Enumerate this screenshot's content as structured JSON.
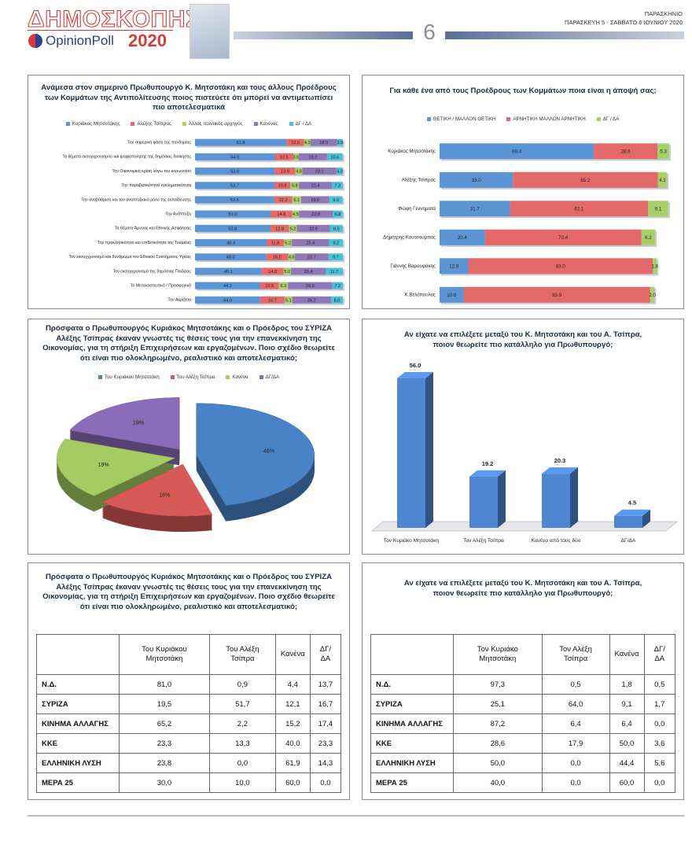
{
  "header": {
    "title": "ΔΗΜΟΣΚΟΠΗΣΗ",
    "brand": "OpinionPoll",
    "year": "2020",
    "page": "6",
    "section": "ΠΑΡΑΣΚΗΝΙΟ",
    "date": "ΠΑΡΑΣΚΕΥΗ 5 - ΣΑΒΒΑΤΟ 6 ΙΟΥΝΙΟΥ 2020"
  },
  "chart_data": [
    {
      "type": "barh",
      "stacked": true,
      "legend": "top",
      "title": "Ανάμεσα στον σημερινό Πρωθυπουργό Κ. Μητσοτάκη και τους άλλους Προέδρους των Κομμάτων της Αντιπολίτευσης ποιος πιστεύετε ότι μπορεί να αντιμετωπίσει πιο αποτελεσματικά",
      "categories": [
        "Την σημερινή φάση της πανδημίας",
        "Τα θέματα εκσυγχρονισμού και ψηφιοποίησης της δημόσιας διοίκησης",
        "Την Οικονομική κρίση λόγω του κορωνοϊού",
        "Την παραβατικότητα/ εγκληματικότητα",
        "Την αναβάθμιση και τον αναπτυξιακό ρόλο της εκπαίδευσης",
        "Την Ανάπτυξη",
        "Τα θέματα Άμυνας και Εθνικής Ασφάλειας",
        "Την προκλητικότητα και επιθετικότητα της Τουρκίας",
        "Τον εκσυγχρονισμό και δυνάμωμα του Εθνικού Συστήματος Υγείας",
        "Τον εκσυγχρονισμό της δημόσιας Παιδείας",
        "Το Μεταναστευτικό / Προσφυγικό",
        "Την Ακρίβεια"
      ],
      "series": [
        {
          "name": "Κυριάκος Μητσοτάκης",
          "color": "#5b95d6",
          "values": [
            61.8,
            54.0,
            53.9,
            53.7,
            53.5,
            51.0,
            50.8,
            48.4,
            48.0,
            45.1,
            44.1,
            44.0
          ],
          "value_labels": [
            "61.8",
            "54.0",
            "53.9",
            "53.7",
            "53.5",
            "51.0",
            "50.8",
            "48.4",
            "48.0",
            "45.1",
            "44.1",
            "44.0"
          ]
        },
        {
          "name": "Αλέξης Τσίπρας",
          "color": "#e46a6a",
          "values": [
            12.0,
            12.5,
            13.9,
            10.8,
            12.2,
            14.8,
            12.8,
            11.8,
            15.0,
            14.8,
            12.6,
            16.7
          ],
          "value_labels": [
            "12.0",
            "12.5",
            "13.9",
            "10.8",
            "12.2",
            "14.8",
            "12.8",
            "11.8",
            "15.0",
            "14.8",
            "12.6",
            "16.7"
          ]
        },
        {
          "name": "Άλλος πολιτικός αρχηγός",
          "color": "#a8cf6a",
          "values": [
            4.3,
            3.6,
            4.8,
            5.8,
            6.1,
            4.5,
            5.2,
            5.2,
            4.6,
            5.0,
            6.2,
            5.1
          ],
          "value_labels": [
            "4.3",
            "3.6",
            "4.8",
            "5.8",
            "6.1",
            "4.5",
            "5.2",
            "5.2",
            "4.6",
            "5.0",
            "6.2",
            "5.1"
          ]
        },
        {
          "name": "Κανένας",
          "color": "#9077b8",
          "values": [
            18.0,
            19.2,
            23.1,
            22.4,
            19.0,
            22.8,
            22.6,
            25.4,
            22.7,
            23.4,
            29.9,
            26.2
          ],
          "value_labels": [
            "18.0",
            "19.2",
            "23.1",
            "22.4",
            "19.0",
            "22.8",
            "22.6",
            "25.4",
            "22.7",
            "23.4",
            "29.9",
            "26.2"
          ]
        },
        {
          "name": "ΔΓ / ΔΑ",
          "color": "#4cc0d6",
          "values": [
            3.9,
            10.6,
            4.3,
            7.3,
            9.0,
            6.8,
            8.5,
            9.2,
            9.7,
            11.7,
            7.2,
            8.0
          ],
          "value_labels": [
            "3.9",
            "10.6",
            "4.3",
            "7.3",
            "9.0",
            "6.8",
            "8.5",
            "9.2",
            "9.7",
            "11.7",
            "7.2",
            "8.0"
          ]
        }
      ]
    },
    {
      "type": "barh",
      "stacked": true,
      "legend": "top",
      "title": "Για κάθε ένα από τους Προέδρους των Κομμάτων ποια είναι η άποψή σας;",
      "categories": [
        "Κυριάκος Μητσοτάκης",
        "Αλέξης Τσίπρας",
        "Φώφη Γεννηματά",
        "Δημήτρης Κουτσούμπας",
        "Γιάννης Βαρουφάκης",
        "Κ.Βελόπουλος"
      ],
      "series": [
        {
          "name": "ΘΕΤΙΚΗ / ΜΑΛΛΟΝ ΘΕΤΙΚΗ",
          "color": "#5b95d6",
          "values": [
            69.4,
            33.0,
            31.7,
            20.4,
            12.9,
            10.8
          ],
          "value_labels": [
            "69.4",
            "33.0",
            "31.7",
            "20.4",
            "12.9",
            "10.8"
          ]
        },
        {
          "name": "ΑΡΝΗΤΙΚΗ ΜΑΛΛΟΝ ΑΡΝΗΤΙΚΗ",
          "color": "#e46a6a",
          "values": [
            28.6,
            65.2,
            62.1,
            70.4,
            83.0,
            83.9
          ],
          "value_labels": [
            "28.6",
            "65.2",
            "62.1",
            "70.4",
            "83.0",
            "83.9"
          ]
        },
        {
          "name": "ΔΓ / ΔΑ",
          "color": "#a8cf6a",
          "values": [
            5.3,
            4.1,
            9.1,
            6.2,
            1.8,
            2.0
          ],
          "value_labels": [
            "5.3",
            "4.1",
            "9.1",
            "6.2",
            "1.8",
            "2.0"
          ]
        }
      ]
    },
    {
      "type": "pie",
      "legend": "top",
      "title": "Πρόσφατα ο Πρωθυπουργός Κυριάκος Μητσοτάκης και ο Πρόεδρος του ΣΥΡΙΖΑ Αλέξης Τσίπρας έκαναν γνωστές τις θέσεις τους για την επανεκκίνηση της Οικονομίας, για τη στήριξη Επιχειρήσεων και εργαζομένων. Ποιο σχέδιο θεωρείτε ότι είναι πιο ολοκληρωμένο, ρεαλιστικό και αποτελεσματικό;",
      "categories": [
        "Του Κυριάκου Μητσοτάκη",
        "Του Αλέξη Τσίπρα",
        "Κανένα",
        "ΔΓ/ΔΑ"
      ],
      "values": [
        46,
        16,
        19,
        19
      ],
      "value_labels": [
        "46%",
        "16%",
        "19%",
        "19%"
      ],
      "colors": [
        "#4a82c8",
        "#d75a57",
        "#a5cb63",
        "#8a6cb8"
      ]
    },
    {
      "type": "bar",
      "title": "Αν είχατε να επιλέξετε μεταξύ του Κ. Μητσοτάκη και του Α. Τσίπρα, ποιον θεωρείτε πιο κατάλληλο για Πρωθυπουργό;",
      "categories": [
        "Τον Κυριάκο Μητσοτάκη",
        "Τον Αλέξη Τσίπρα",
        "Κανένα από τους δύο",
        "ΔΓ/ΔΑ"
      ],
      "values": [
        56.0,
        19.2,
        20.3,
        4.5
      ],
      "value_labels": [
        "56.0",
        "19.2",
        "20.3",
        "4.5"
      ],
      "color": "#4f86d2"
    }
  ],
  "tables": [
    {
      "title": "Πρόσφατα ο Πρωθυπουργός Κυριάκος Μητσοτάκης και ο Πρόεδρος του ΣΥΡΙΖΑ Αλέξης Τσίπρας έκαναν γνωστές τις θέσεις τους για την επανεκκίνηση της Οικονομίας, για τη στήριξη Επιχειρήσεων και εργαζομένων. Ποιο σχέδιο θεωρείτε ότι είναι πιο ολοκληρωμένο, ρεαλιστικό και αποτελεσματικό;",
      "columns": [
        "Του Κυριάκου Μητσοτάκη",
        "Του Αλέξη Τσίπρα",
        "Κανένα",
        "ΔΓ/ΔΑ"
      ],
      "rows": [
        [
          "Ν.Δ.",
          "81,0",
          "0,9",
          "4,4",
          "13,7"
        ],
        [
          "ΣΥΡΙΖΑ",
          "19,5",
          "51,7",
          "12,1",
          "16,7"
        ],
        [
          "ΚΙΝΗΜΑ ΑΛΛΑΓΗΣ",
          "65,2",
          "2,2",
          "15,2",
          "17,4"
        ],
        [
          "ΚΚΕ",
          "23,3",
          "13,3",
          "40,0",
          "23,3"
        ],
        [
          "ΕΛΛΗΝΙΚΗ ΛΥΣΗ",
          "23,8",
          "0,0",
          "61,9",
          "14,3"
        ],
        [
          "ΜΕΡΑ 25",
          "30,0",
          "10,0",
          "60,0",
          "0,0"
        ]
      ]
    },
    {
      "title": "Αν είχατε να επιλέξετε μεταξύ του Κ. Μητσοτάκη και του Α. Τσίπρα, ποιον θεωρείτε πιο κατάλληλο για Πρωθυπουργό;",
      "columns": [
        "Τον Κυριάκο Μητσοτάκη",
        "Τον Αλέξη Τσίπρα",
        "Κανένα",
        "ΔΓ/ΔΑ"
      ],
      "rows": [
        [
          "Ν.Δ.",
          "97,3",
          "0,5",
          "1,8",
          "0,5"
        ],
        [
          "ΣΥΡΙΖΑ",
          "25,1",
          "64,0",
          "9,1",
          "1,7"
        ],
        [
          "ΚΙΝΗΜΑ ΑΛΛΑΓΗΣ",
          "87,2",
          "6,4",
          "6,4",
          "0,0"
        ],
        [
          "ΚΚΕ",
          "28,6",
          "17,9",
          "50,0",
          "3,6"
        ],
        [
          "ΕΛΛΗΝΙΚΗ ΛΥΣΗ",
          "50,0",
          "0,0",
          "44,4",
          "5,6"
        ],
        [
          "ΜΕΡΑ 25",
          "40,0",
          "0,0",
          "60,0",
          "0,0"
        ]
      ]
    }
  ]
}
